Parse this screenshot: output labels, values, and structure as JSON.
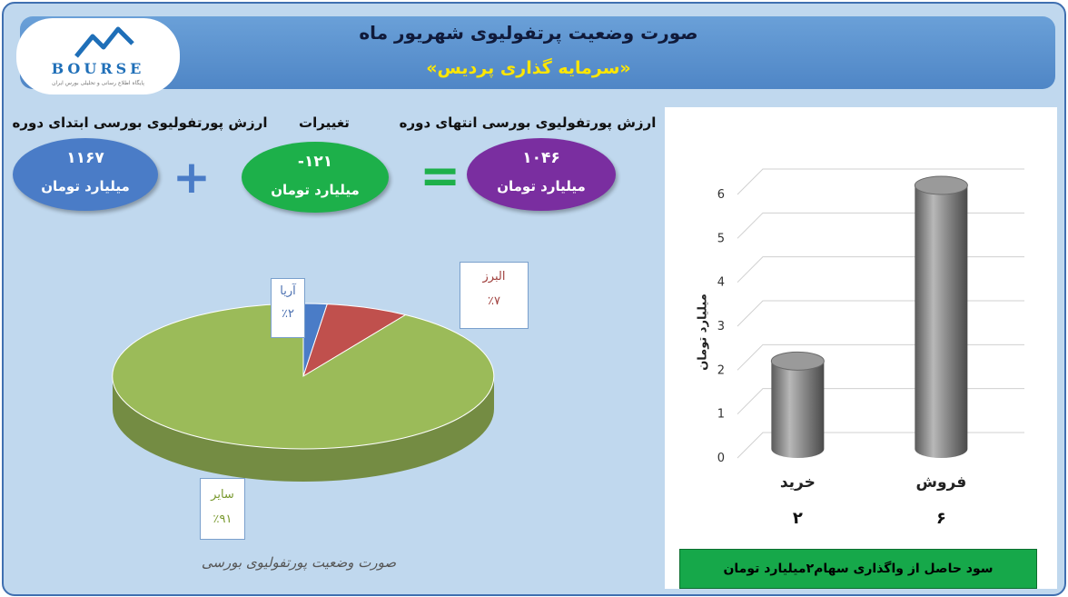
{
  "header": {
    "title": "صورت وضعیت پرتفولیوی شهریور ماه",
    "subtitle": "«سرمایه گذاری پردیس»"
  },
  "logo": {
    "wordmark": "BOURSE",
    "tagline": "پایگاه اطلاع رسانی و تحلیلی بورس ایران"
  },
  "summary": {
    "start": {
      "label": "ارزش پورتفولیوی بورسی ابتدای دوره",
      "value": "۱۱۶۷",
      "unit": "میلیارد تومان",
      "color": "#4a7cc7"
    },
    "change": {
      "label": "تغییرات",
      "value": "-۱۲۱",
      "unit": "میلیارد تومان",
      "color": "#1db04a"
    },
    "end": {
      "label": "ارزش پورتفولیوی بورسی انتهای دوره",
      "value": "۱۰۴۶",
      "unit": "میلیارد تومان",
      "color": "#7a2ea0"
    },
    "plus_sign": "+",
    "equals_sign": "="
  },
  "pie": {
    "caption": "صورت وضعیت پورتفولیوی بورسی",
    "slices": [
      {
        "name": "آریا",
        "label": "٪۲",
        "value": 2,
        "color": "#4a7cc7",
        "text_color": "#4a6fb0"
      },
      {
        "name": "البرز",
        "label": "٪۷",
        "value": 7,
        "color": "#c0504d",
        "text_color": "#a0403d"
      },
      {
        "name": "سایر",
        "label": "٪۹۱",
        "value": 91,
        "color": "#9bbb59",
        "text_color": "#7a9a30"
      }
    ]
  },
  "bars": {
    "ylabel": "میلیارد تومان",
    "ticks": [
      "0",
      "1",
      "2",
      "3",
      "4",
      "5",
      "6"
    ],
    "footer": "سود حاصل از واگذاری سهام۲میلیارد تومان",
    "bar_color": "#8c8c8c",
    "grid": true
  },
  "chart_data": [
    {
      "type": "pie",
      "title": "صورت وضعیت پورتفولیوی بورسی",
      "categories": [
        "آریا",
        "البرز",
        "سایر"
      ],
      "values": [
        2,
        7,
        91
      ]
    },
    {
      "type": "bar",
      "categories": [
        "خرید",
        "فروش"
      ],
      "values": [
        2,
        6
      ],
      "value_labels": [
        "۲",
        "۶"
      ],
      "ylabel": "میلیارد تومان",
      "ylim": [
        0,
        6
      ]
    }
  ]
}
